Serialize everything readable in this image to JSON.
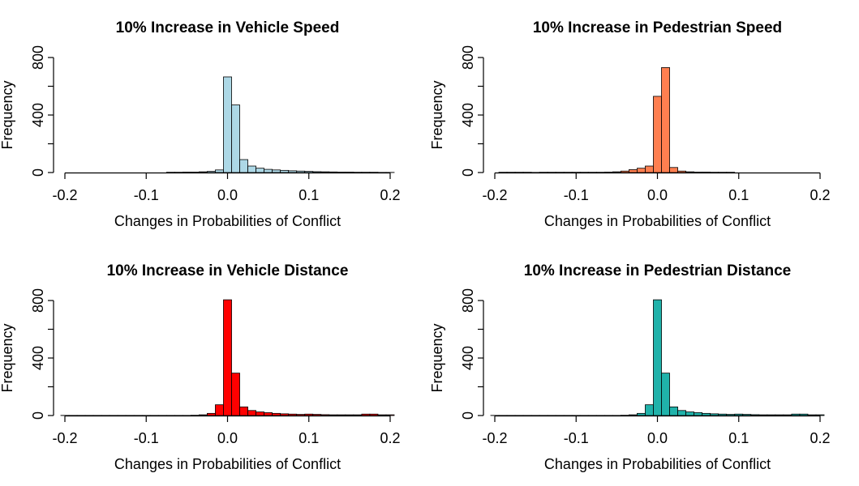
{
  "chart_data": [
    {
      "type": "bar",
      "title": "10% Increase in Vehicle Speed",
      "xlabel": "Changes in Probabilities of Conflict",
      "ylabel": "Frequency",
      "xlim": [
        -0.2,
        0.2
      ],
      "ylim": [
        0,
        800
      ],
      "xticks": [
        "-0.2",
        "-0.1",
        "0.0",
        "0.1",
        "0.2"
      ],
      "yticks": [
        "0",
        "400",
        "800"
      ],
      "bin_width": 0.01,
      "color": "#ADD8E6",
      "bins": [
        [
          -0.07,
          2
        ],
        [
          -0.06,
          2
        ],
        [
          -0.05,
          3
        ],
        [
          -0.04,
          3
        ],
        [
          -0.03,
          5
        ],
        [
          -0.02,
          8
        ],
        [
          -0.01,
          18
        ],
        [
          0.0,
          665
        ],
        [
          0.01,
          470
        ],
        [
          0.02,
          90
        ],
        [
          0.03,
          45
        ],
        [
          0.04,
          30
        ],
        [
          0.05,
          22
        ],
        [
          0.06,
          18
        ],
        [
          0.07,
          15
        ],
        [
          0.08,
          12
        ],
        [
          0.09,
          10
        ],
        [
          0.1,
          8
        ],
        [
          0.11,
          6
        ],
        [
          0.12,
          5
        ],
        [
          0.13,
          4
        ],
        [
          0.14,
          3
        ],
        [
          0.15,
          3
        ],
        [
          0.16,
          2
        ],
        [
          0.17,
          2
        ],
        [
          0.18,
          2
        ],
        [
          0.19,
          1
        ],
        [
          0.2,
          1
        ]
      ]
    },
    {
      "type": "bar",
      "title": "10% Increase in Pedestrian Speed",
      "xlabel": "Changes in Probabilities of Conflict",
      "ylabel": "Frequency",
      "xlim": [
        -0.2,
        0.2
      ],
      "ylim": [
        0,
        800
      ],
      "xticks": [
        "-0.2",
        "-0.1",
        "0.0",
        "0.1",
        "0.2"
      ],
      "yticks": [
        "0",
        "400",
        "800"
      ],
      "bin_width": 0.01,
      "color": "#FF7F50",
      "bins": [
        [
          -0.19,
          2
        ],
        [
          -0.18,
          2
        ],
        [
          -0.17,
          2
        ],
        [
          -0.16,
          2
        ],
        [
          -0.15,
          1
        ],
        [
          -0.14,
          2
        ],
        [
          -0.13,
          2
        ],
        [
          -0.12,
          2
        ],
        [
          -0.11,
          2
        ],
        [
          -0.1,
          2
        ],
        [
          -0.09,
          2
        ],
        [
          -0.08,
          2
        ],
        [
          -0.07,
          2
        ],
        [
          -0.06,
          3
        ],
        [
          -0.05,
          5
        ],
        [
          -0.04,
          10
        ],
        [
          -0.03,
          20
        ],
        [
          -0.02,
          30
        ],
        [
          -0.01,
          45
        ],
        [
          0.0,
          530
        ],
        [
          0.01,
          730
        ],
        [
          0.02,
          35
        ],
        [
          0.03,
          10
        ],
        [
          0.04,
          5
        ],
        [
          0.05,
          3
        ],
        [
          0.06,
          3
        ],
        [
          0.07,
          2
        ],
        [
          0.08,
          2
        ],
        [
          0.09,
          2
        ]
      ]
    },
    {
      "type": "bar",
      "title": "10% Increase in Vehicle Distance",
      "xlabel": "Changes in Probabilities of Conflict",
      "ylabel": "Frequency",
      "xlim": [
        -0.2,
        0.2
      ],
      "ylim": [
        0,
        800
      ],
      "xticks": [
        "-0.2",
        "-0.1",
        "0.0",
        "0.1",
        "0.2"
      ],
      "yticks": [
        "0",
        "400",
        "800"
      ],
      "bin_width": 0.01,
      "color": "#FF0000",
      "bins": [
        [
          -0.2,
          1
        ],
        [
          -0.19,
          1
        ],
        [
          -0.18,
          1
        ],
        [
          -0.17,
          1
        ],
        [
          -0.16,
          1
        ],
        [
          -0.15,
          1
        ],
        [
          -0.14,
          1
        ],
        [
          -0.13,
          1
        ],
        [
          -0.12,
          1
        ],
        [
          -0.11,
          1
        ],
        [
          -0.1,
          1
        ],
        [
          -0.09,
          1
        ],
        [
          -0.08,
          1
        ],
        [
          -0.07,
          1
        ],
        [
          -0.06,
          1
        ],
        [
          -0.05,
          1
        ],
        [
          -0.04,
          2
        ],
        [
          -0.03,
          5
        ],
        [
          -0.02,
          15
        ],
        [
          -0.01,
          75
        ],
        [
          0.0,
          805
        ],
        [
          0.01,
          295
        ],
        [
          0.02,
          60
        ],
        [
          0.03,
          35
        ],
        [
          0.04,
          25
        ],
        [
          0.05,
          20
        ],
        [
          0.06,
          15
        ],
        [
          0.07,
          12
        ],
        [
          0.08,
          10
        ],
        [
          0.09,
          8
        ],
        [
          0.1,
          10
        ],
        [
          0.11,
          8
        ],
        [
          0.12,
          6
        ],
        [
          0.13,
          5
        ],
        [
          0.14,
          5
        ],
        [
          0.15,
          5
        ],
        [
          0.16,
          5
        ],
        [
          0.17,
          10
        ],
        [
          0.18,
          10
        ],
        [
          0.19,
          5
        ],
        [
          0.2,
          5
        ]
      ]
    },
    {
      "type": "bar",
      "title": "10% Increase in Pedestrian Distance",
      "xlabel": "Changes in Probabilities of Conflict",
      "ylabel": "Frequency",
      "xlim": [
        -0.2,
        0.2
      ],
      "ylim": [
        0,
        800
      ],
      "xticks": [
        "-0.2",
        "-0.1",
        "0.0",
        "0.1",
        "0.2"
      ],
      "yticks": [
        "0",
        "400",
        "800"
      ],
      "bin_width": 0.01,
      "color": "#20B2AA",
      "bins": [
        [
          -0.2,
          1
        ],
        [
          -0.19,
          1
        ],
        [
          -0.18,
          1
        ],
        [
          -0.17,
          1
        ],
        [
          -0.16,
          1
        ],
        [
          -0.15,
          1
        ],
        [
          -0.14,
          1
        ],
        [
          -0.13,
          1
        ],
        [
          -0.12,
          1
        ],
        [
          -0.11,
          1
        ],
        [
          -0.1,
          1
        ],
        [
          -0.09,
          1
        ],
        [
          -0.08,
          1
        ],
        [
          -0.07,
          1
        ],
        [
          -0.06,
          1
        ],
        [
          -0.05,
          1
        ],
        [
          -0.04,
          2
        ],
        [
          -0.03,
          5
        ],
        [
          -0.02,
          15
        ],
        [
          -0.01,
          75
        ],
        [
          0.0,
          805
        ],
        [
          0.01,
          295
        ],
        [
          0.02,
          60
        ],
        [
          0.03,
          35
        ],
        [
          0.04,
          25
        ],
        [
          0.05,
          20
        ],
        [
          0.06,
          15
        ],
        [
          0.07,
          12
        ],
        [
          0.08,
          10
        ],
        [
          0.09,
          8
        ],
        [
          0.1,
          10
        ],
        [
          0.11,
          8
        ],
        [
          0.12,
          6
        ],
        [
          0.13,
          5
        ],
        [
          0.14,
          5
        ],
        [
          0.15,
          5
        ],
        [
          0.16,
          5
        ],
        [
          0.17,
          10
        ],
        [
          0.18,
          10
        ],
        [
          0.19,
          5
        ],
        [
          0.2,
          5
        ]
      ]
    }
  ]
}
